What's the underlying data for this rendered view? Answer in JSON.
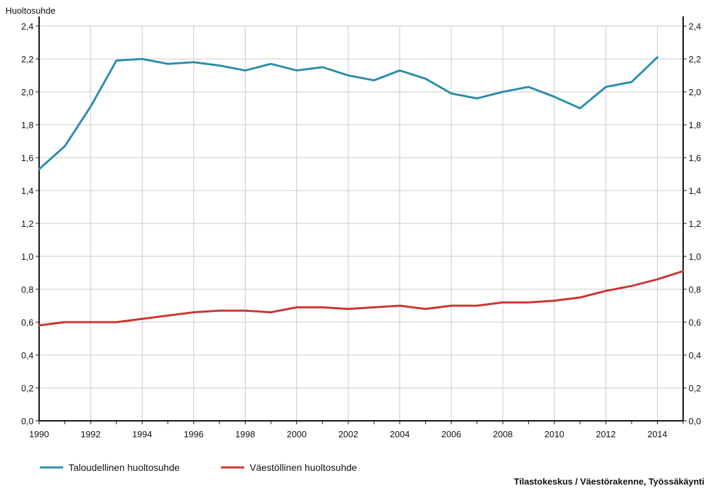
{
  "chart_data": {
    "type": "line",
    "title": "",
    "ylabel": "Huoltosuhde",
    "xlabel": "",
    "xlim": [
      1990,
      2015
    ],
    "ylim": [
      0,
      2.4
    ],
    "y_ticks": [
      "0,0",
      "0,2",
      "0,4",
      "0,6",
      "0,8",
      "1,0",
      "1,2",
      "1,4",
      "1,6",
      "1,8",
      "2,0",
      "2,2",
      "2,4"
    ],
    "y_tick_values": [
      0,
      0.2,
      0.4,
      0.6,
      0.8,
      1.0,
      1.2,
      1.4,
      1.6,
      1.8,
      2.0,
      2.2,
      2.4
    ],
    "x_ticks": [
      "1990",
      "1992",
      "1994",
      "1996",
      "1998",
      "2000",
      "2002",
      "2004",
      "2006",
      "2008",
      "2010",
      "2012",
      "2014"
    ],
    "x_tick_values": [
      1990,
      1992,
      1994,
      1996,
      1998,
      2000,
      2002,
      2004,
      2006,
      2008,
      2010,
      2012,
      2014
    ],
    "grid": true,
    "secondary_y_axis": true,
    "legend_position": "bottom-left",
    "series": [
      {
        "name": "Taloudellinen huoltosuhde",
        "color": "#2a8cab",
        "x": [
          1990,
          1991,
          1992,
          1993,
          1994,
          1995,
          1996,
          1997,
          1998,
          1999,
          2000,
          2001,
          2002,
          2003,
          2004,
          2005,
          2006,
          2007,
          2008,
          2009,
          2010,
          2011,
          2012,
          2013,
          2014
        ],
        "values": [
          1.53,
          1.67,
          1.91,
          2.19,
          2.2,
          2.17,
          2.18,
          2.16,
          2.13,
          2.17,
          2.13,
          2.15,
          2.1,
          2.07,
          2.13,
          2.08,
          1.99,
          1.96,
          2.0,
          2.03,
          1.97,
          1.9,
          2.03,
          2.06,
          2.21
        ]
      },
      {
        "name": "Väestöllinen huoltosuhde",
        "color": "#cc3333",
        "x": [
          1990,
          1991,
          1992,
          1993,
          1994,
          1995,
          1996,
          1997,
          1998,
          1999,
          2000,
          2001,
          2002,
          2003,
          2004,
          2005,
          2006,
          2007,
          2008,
          2009,
          2010,
          2011,
          2012,
          2013,
          2014,
          2015
        ],
        "values": [
          0.58,
          0.6,
          0.6,
          0.6,
          0.62,
          0.64,
          0.66,
          0.67,
          0.67,
          0.66,
          0.69,
          0.69,
          0.68,
          0.69,
          0.7,
          0.68,
          0.7,
          0.7,
          0.72,
          0.72,
          0.73,
          0.75,
          0.79,
          0.82,
          0.86,
          0.91
        ]
      }
    ],
    "source": "Tilastokeskus / Väestörakenne, Työssäkäynti"
  }
}
